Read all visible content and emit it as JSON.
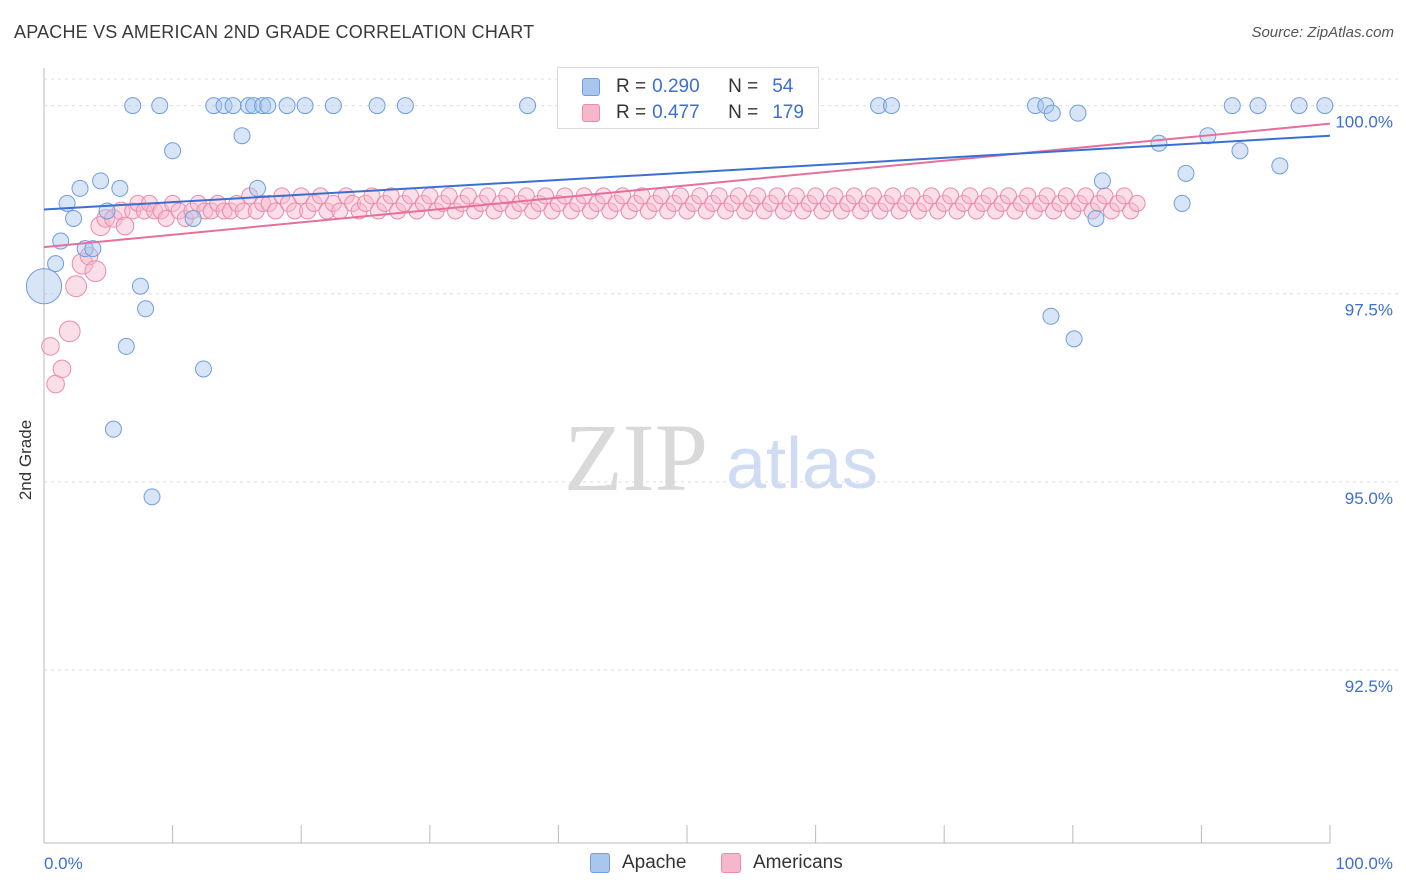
{
  "header": {
    "title": "APACHE VS AMERICAN 2ND GRADE CORRELATION CHART",
    "source": "Source: ZipAtlas.com"
  },
  "watermark": {
    "zip": "ZIP",
    "atlas": "atlas"
  },
  "legend": {
    "r_label": "R =",
    "n_label": "N =",
    "rows": [
      {
        "name": "Apache",
        "r": "0.290",
        "n": "54"
      },
      {
        "name": "Americans",
        "r": "0.477",
        "n": "179"
      }
    ]
  },
  "colors": {
    "apache_fill": "#a9c6ee",
    "apache_stroke": "#6f9edd",
    "apache_line": "#3b6fd1",
    "americans_fill": "#f6b7cb",
    "americans_stroke": "#ec8aab",
    "americans_line": "#e4709b",
    "tick_label": "#3b6fd1",
    "grid": "#dedede"
  },
  "chart_data": {
    "type": "scatter",
    "title": "APACHE VS AMERICAN 2ND GRADE CORRELATION CHART",
    "xlabel": "",
    "ylabel": "2nd Grade",
    "xlim": [
      0,
      100
    ],
    "ylim": [
      90.2,
      100.5
    ],
    "x_tick_labels": [
      {
        "value": 0,
        "label": "0.0%"
      },
      {
        "value": 100,
        "label": "100.0%"
      }
    ],
    "y_tick_labels": [
      {
        "value": 100,
        "label": "100.0%"
      },
      {
        "value": 97.5,
        "label": "97.5%"
      },
      {
        "value": 95,
        "label": "95.0%"
      },
      {
        "value": 92.5,
        "label": "92.5%"
      }
    ],
    "grid": true,
    "legend_position": "top-center",
    "series": [
      {
        "name": "Apache",
        "trend": [
          [
            0,
            98.62
          ],
          [
            100,
            99.6
          ]
        ],
        "points": [
          [
            0,
            97.6,
            2.2
          ],
          [
            0.9,
            97.9,
            1
          ],
          [
            1.3,
            98.2,
            1
          ],
          [
            1.8,
            98.7,
            1
          ],
          [
            2.3,
            98.5,
            1
          ],
          [
            2.8,
            98.9,
            1
          ],
          [
            3.2,
            98.1,
            1
          ],
          [
            3.8,
            98.1,
            1
          ],
          [
            4.4,
            99.0,
            1
          ],
          [
            4.9,
            98.6,
            1
          ],
          [
            5.4,
            95.7,
            1
          ],
          [
            5.9,
            98.9,
            1
          ],
          [
            6.4,
            96.8,
            1
          ],
          [
            6.9,
            100.0,
            1
          ],
          [
            7.5,
            97.6,
            1
          ],
          [
            7.9,
            97.3,
            1
          ],
          [
            8.4,
            94.8,
            1
          ],
          [
            9.0,
            100.0,
            1
          ],
          [
            10.0,
            99.4,
            1
          ],
          [
            11.6,
            98.5,
            1
          ],
          [
            12.4,
            96.5,
            1
          ],
          [
            13.2,
            100.0,
            1
          ],
          [
            14.0,
            100.0,
            1
          ],
          [
            14.7,
            100.0,
            1
          ],
          [
            15.4,
            99.6,
            1
          ],
          [
            15.9,
            100.0,
            1
          ],
          [
            16.3,
            100.0,
            1
          ],
          [
            16.6,
            98.9,
            1
          ],
          [
            17.0,
            100.0,
            1
          ],
          [
            17.4,
            100.0,
            1
          ],
          [
            18.9,
            100.0,
            1
          ],
          [
            20.3,
            100.0,
            1
          ],
          [
            22.5,
            100.0,
            1
          ],
          [
            25.9,
            100.0,
            1
          ],
          [
            28.1,
            100.0,
            1
          ],
          [
            37.6,
            100.0,
            1
          ],
          [
            64.9,
            100.0,
            1
          ],
          [
            65.9,
            100.0,
            1
          ],
          [
            77.1,
            100.0,
            1
          ],
          [
            77.9,
            100.0,
            1
          ],
          [
            78.3,
            97.2,
            1
          ],
          [
            78.4,
            99.9,
            1
          ],
          [
            80.1,
            96.9,
            1
          ],
          [
            80.4,
            99.9,
            1
          ],
          [
            81.8,
            98.5,
            1
          ],
          [
            82.3,
            99.0,
            1
          ],
          [
            86.7,
            99.5,
            1
          ],
          [
            88.5,
            98.7,
            1
          ],
          [
            88.8,
            99.1,
            1
          ],
          [
            90.5,
            99.6,
            1
          ],
          [
            92.4,
            100.0,
            1
          ],
          [
            93.0,
            99.4,
            1
          ],
          [
            94.4,
            100.0,
            1
          ],
          [
            96.1,
            99.2,
            1
          ],
          [
            97.6,
            100.0,
            1
          ],
          [
            99.6,
            100.0,
            1
          ]
        ]
      },
      {
        "name": "Americans",
        "trend": [
          [
            0,
            98.12
          ],
          [
            100,
            99.76
          ]
        ],
        "points": [
          [
            0.5,
            96.8,
            1.1
          ],
          [
            0.9,
            96.3,
            1.1
          ],
          [
            1.4,
            96.5,
            1.1
          ],
          [
            2.0,
            97.0,
            1.3
          ],
          [
            2.5,
            97.6,
            1.3
          ],
          [
            3.0,
            97.9,
            1.3
          ],
          [
            3.5,
            98.0,
            1.1
          ],
          [
            4.0,
            97.8,
            1.3
          ],
          [
            4.4,
            98.4,
            1.2
          ],
          [
            4.8,
            98.5,
            1.1
          ],
          [
            5.4,
            98.5,
            1.1
          ],
          [
            6.0,
            98.6,
            1.1
          ],
          [
            6.3,
            98.4,
            1.1
          ],
          [
            6.9,
            98.6,
            1
          ],
          [
            7.3,
            98.7,
            1
          ],
          [
            7.8,
            98.6,
            1
          ],
          [
            8.2,
            98.7,
            1
          ],
          [
            8.6,
            98.6,
            1
          ],
          [
            9.1,
            98.6,
            1
          ],
          [
            9.5,
            98.5,
            1
          ],
          [
            10.0,
            98.7,
            1
          ],
          [
            10.5,
            98.6,
            1
          ],
          [
            11.0,
            98.5,
            1
          ],
          [
            11.5,
            98.6,
            1
          ],
          [
            12.0,
            98.7,
            1
          ],
          [
            12.5,
            98.6,
            1
          ],
          [
            13.0,
            98.6,
            1
          ],
          [
            13.5,
            98.7,
            1
          ],
          [
            14.0,
            98.6,
            1
          ],
          [
            14.5,
            98.6,
            1
          ],
          [
            15.0,
            98.7,
            1
          ],
          [
            15.5,
            98.6,
            1
          ],
          [
            16.0,
            98.8,
            1
          ],
          [
            16.5,
            98.6,
            1
          ],
          [
            17.0,
            98.7,
            1
          ],
          [
            17.5,
            98.7,
            1
          ],
          [
            18.0,
            98.6,
            1
          ],
          [
            18.5,
            98.8,
            1
          ],
          [
            19.0,
            98.7,
            1
          ],
          [
            19.5,
            98.6,
            1
          ],
          [
            20.0,
            98.8,
            1
          ],
          [
            20.5,
            98.6,
            1
          ],
          [
            21.0,
            98.7,
            1
          ],
          [
            21.5,
            98.8,
            1
          ],
          [
            22.0,
            98.6,
            1
          ],
          [
            22.5,
            98.7,
            1
          ],
          [
            23.0,
            98.6,
            1
          ],
          [
            23.5,
            98.8,
            1
          ],
          [
            24.0,
            98.7,
            1
          ],
          [
            24.5,
            98.6,
            1
          ],
          [
            25.0,
            98.7,
            1
          ],
          [
            25.5,
            98.8,
            1
          ],
          [
            26.0,
            98.6,
            1
          ],
          [
            26.5,
            98.7,
            1
          ],
          [
            27.0,
            98.8,
            1
          ],
          [
            27.5,
            98.6,
            1
          ],
          [
            28.0,
            98.7,
            1
          ],
          [
            28.5,
            98.8,
            1
          ],
          [
            29.0,
            98.6,
            1
          ],
          [
            29.5,
            98.7,
            1
          ],
          [
            30.0,
            98.8,
            1
          ],
          [
            30.5,
            98.6,
            1
          ],
          [
            31.0,
            98.7,
            1
          ],
          [
            31.5,
            98.8,
            1
          ],
          [
            32.0,
            98.6,
            1
          ],
          [
            32.5,
            98.7,
            1
          ],
          [
            33.0,
            98.8,
            1
          ],
          [
            33.5,
            98.6,
            1
          ],
          [
            34.0,
            98.7,
            1
          ],
          [
            34.5,
            98.8,
            1
          ],
          [
            35.0,
            98.6,
            1
          ],
          [
            35.5,
            98.7,
            1
          ],
          [
            36.0,
            98.8,
            1
          ],
          [
            36.5,
            98.6,
            1
          ],
          [
            37.0,
            98.7,
            1
          ],
          [
            37.5,
            98.8,
            1
          ],
          [
            38.0,
            98.6,
            1
          ],
          [
            38.5,
            98.7,
            1
          ],
          [
            39.0,
            98.8,
            1
          ],
          [
            39.5,
            98.6,
            1
          ],
          [
            40.0,
            98.7,
            1
          ],
          [
            40.5,
            98.8,
            1
          ],
          [
            41.0,
            98.6,
            1
          ],
          [
            41.5,
            98.7,
            1
          ],
          [
            42.0,
            98.8,
            1
          ],
          [
            42.5,
            98.6,
            1
          ],
          [
            43.0,
            98.7,
            1
          ],
          [
            43.5,
            98.8,
            1
          ],
          [
            44.0,
            98.6,
            1
          ],
          [
            44.5,
            98.7,
            1
          ],
          [
            45.0,
            98.8,
            1
          ],
          [
            45.5,
            98.6,
            1
          ],
          [
            46.0,
            98.7,
            1
          ],
          [
            46.5,
            98.8,
            1
          ],
          [
            47.0,
            98.6,
            1
          ],
          [
            47.5,
            98.7,
            1
          ],
          [
            48.0,
            98.8,
            1
          ],
          [
            48.5,
            98.6,
            1
          ],
          [
            49.0,
            98.7,
            1
          ],
          [
            49.5,
            98.8,
            1
          ],
          [
            50.0,
            98.6,
            1
          ],
          [
            50.5,
            98.7,
            1
          ],
          [
            51.0,
            98.8,
            1
          ],
          [
            51.5,
            98.6,
            1
          ],
          [
            52.0,
            98.7,
            1
          ],
          [
            52.5,
            98.8,
            1
          ],
          [
            53.0,
            98.6,
            1
          ],
          [
            53.5,
            98.7,
            1
          ],
          [
            54.0,
            98.8,
            1
          ],
          [
            54.5,
            98.6,
            1
          ],
          [
            55.0,
            98.7,
            1
          ],
          [
            55.5,
            98.8,
            1
          ],
          [
            56.0,
            98.6,
            1
          ],
          [
            56.5,
            98.7,
            1
          ],
          [
            57.0,
            98.8,
            1
          ],
          [
            57.5,
            98.6,
            1
          ],
          [
            58.0,
            98.7,
            1
          ],
          [
            58.5,
            98.8,
            1
          ],
          [
            59.0,
            98.6,
            1
          ],
          [
            59.5,
            98.7,
            1
          ],
          [
            60.0,
            98.8,
            1
          ],
          [
            60.5,
            98.6,
            1
          ],
          [
            61.0,
            98.7,
            1
          ],
          [
            61.5,
            98.8,
            1
          ],
          [
            62.0,
            98.6,
            1
          ],
          [
            62.5,
            98.7,
            1
          ],
          [
            63.0,
            98.8,
            1
          ],
          [
            63.5,
            98.6,
            1
          ],
          [
            64.0,
            98.7,
            1
          ],
          [
            64.5,
            98.8,
            1
          ],
          [
            65.0,
            98.6,
            1
          ],
          [
            65.5,
            98.7,
            1
          ],
          [
            66.0,
            98.8,
            1
          ],
          [
            66.5,
            98.6,
            1
          ],
          [
            67.0,
            98.7,
            1
          ],
          [
            67.5,
            98.8,
            1
          ],
          [
            68.0,
            98.6,
            1
          ],
          [
            68.5,
            98.7,
            1
          ],
          [
            69.0,
            98.8,
            1
          ],
          [
            69.5,
            98.6,
            1
          ],
          [
            70.0,
            98.7,
            1
          ],
          [
            70.5,
            98.8,
            1
          ],
          [
            71.0,
            98.6,
            1
          ],
          [
            71.5,
            98.7,
            1
          ],
          [
            72.0,
            98.8,
            1
          ],
          [
            72.5,
            98.6,
            1
          ],
          [
            73.0,
            98.7,
            1
          ],
          [
            73.5,
            98.8,
            1
          ],
          [
            74.0,
            98.6,
            1
          ],
          [
            74.5,
            98.7,
            1
          ],
          [
            75.0,
            98.8,
            1
          ],
          [
            75.5,
            98.6,
            1
          ],
          [
            76.0,
            98.7,
            1
          ],
          [
            76.5,
            98.8,
            1
          ],
          [
            77.0,
            98.6,
            1
          ],
          [
            77.5,
            98.7,
            1
          ],
          [
            78.0,
            98.8,
            1
          ],
          [
            78.5,
            98.6,
            1
          ],
          [
            79.0,
            98.7,
            1
          ],
          [
            79.5,
            98.8,
            1
          ],
          [
            80.0,
            98.6,
            1
          ],
          [
            80.5,
            98.7,
            1
          ],
          [
            81.0,
            98.8,
            1
          ],
          [
            81.5,
            98.6,
            1
          ],
          [
            82.0,
            98.7,
            1
          ],
          [
            82.5,
            98.8,
            1
          ],
          [
            83.0,
            98.6,
            1
          ],
          [
            83.5,
            98.7,
            1
          ],
          [
            84.0,
            98.8,
            1
          ],
          [
            84.5,
            98.6,
            1
          ],
          [
            85.0,
            98.7,
            1
          ]
        ]
      }
    ]
  }
}
